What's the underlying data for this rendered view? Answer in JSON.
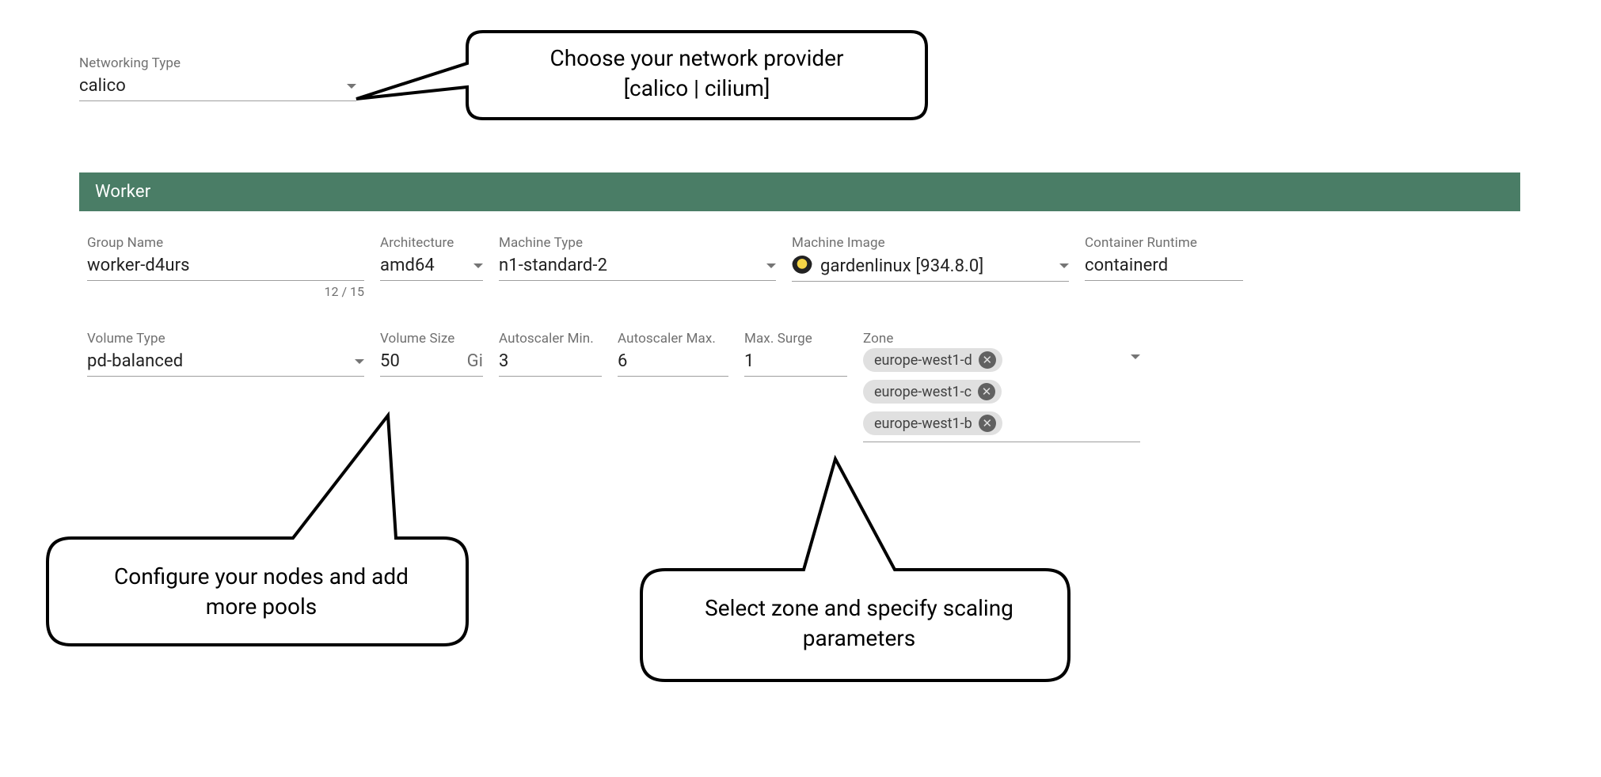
{
  "networking": {
    "label": "Networking Type",
    "value": "calico"
  },
  "section": {
    "title": "Worker"
  },
  "worker": {
    "groupName": {
      "label": "Group Name",
      "value": "worker-d4urs",
      "counter": "12 / 15"
    },
    "architecture": {
      "label": "Architecture",
      "value": "amd64"
    },
    "machineType": {
      "label": "Machine Type",
      "value": "n1-standard-2"
    },
    "machineImage": {
      "label": "Machine Image",
      "value": "gardenlinux [934.8.0]"
    },
    "containerRuntime": {
      "label": "Container Runtime",
      "value": "containerd"
    },
    "volumeType": {
      "label": "Volume Type",
      "value": "pd-balanced"
    },
    "volumeSize": {
      "label": "Volume Size",
      "value": "50",
      "suffix": "Gi"
    },
    "autoscalerMin": {
      "label": "Autoscaler Min.",
      "value": "3"
    },
    "autoscalerMax": {
      "label": "Autoscaler Max.",
      "value": "6"
    },
    "maxSurge": {
      "label": "Max. Surge",
      "value": "1"
    },
    "zone": {
      "label": "Zone",
      "items": [
        "europe-west1-d",
        "europe-west1-c",
        "europe-west1-b"
      ]
    }
  },
  "callouts": {
    "network": {
      "line1": "Choose your network provider",
      "line2": "[calico | cilium]"
    },
    "nodes": {
      "line1": "Configure your nodes and add",
      "line2": "more pools"
    },
    "zones": {
      "line1": "Select zone and specify scaling",
      "line2": "parameters"
    }
  },
  "colors": {
    "sectionHeader": "#4a7d66",
    "labelColor": "#707070",
    "valueColor": "#212121",
    "chipBg": "#E0E0E0",
    "chipRemoveBg": "#616161",
    "underline": "#9e9e9e",
    "background": "#ffffff",
    "calloutStroke": "#000000"
  }
}
